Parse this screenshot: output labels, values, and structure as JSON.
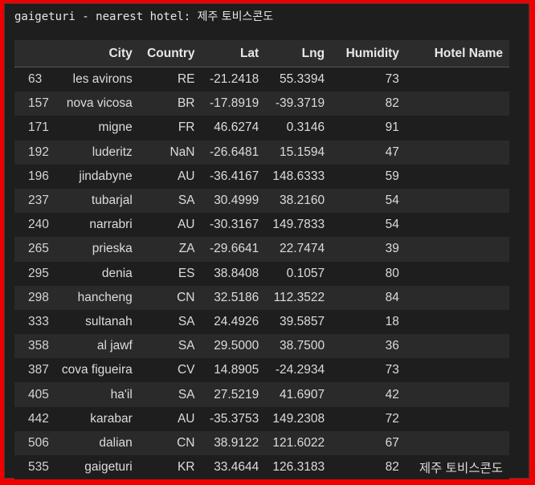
{
  "output": {
    "text": "gaigeturi - nearest hotel: ",
    "hotel": "제주 토비스콘도"
  },
  "table": {
    "columns": [
      "",
      "City",
      "Country",
      "Lat",
      "Lng",
      "Humidity",
      "Hotel Name"
    ],
    "rows": [
      {
        "index": "63",
        "city": "les avirons",
        "country": "RE",
        "lat": "-21.2418",
        "lng": "55.3394",
        "humidity": "73",
        "hotel": ""
      },
      {
        "index": "157",
        "city": "nova vicosa",
        "country": "BR",
        "lat": "-17.8919",
        "lng": "-39.3719",
        "humidity": "82",
        "hotel": ""
      },
      {
        "index": "171",
        "city": "migne",
        "country": "FR",
        "lat": "46.6274",
        "lng": "0.3146",
        "humidity": "91",
        "hotel": ""
      },
      {
        "index": "192",
        "city": "luderitz",
        "country": "NaN",
        "lat": "-26.6481",
        "lng": "15.1594",
        "humidity": "47",
        "hotel": ""
      },
      {
        "index": "196",
        "city": "jindabyne",
        "country": "AU",
        "lat": "-36.4167",
        "lng": "148.6333",
        "humidity": "59",
        "hotel": ""
      },
      {
        "index": "237",
        "city": "tubarjal",
        "country": "SA",
        "lat": "30.4999",
        "lng": "38.2160",
        "humidity": "54",
        "hotel": ""
      },
      {
        "index": "240",
        "city": "narrabri",
        "country": "AU",
        "lat": "-30.3167",
        "lng": "149.7833",
        "humidity": "54",
        "hotel": ""
      },
      {
        "index": "265",
        "city": "prieska",
        "country": "ZA",
        "lat": "-29.6641",
        "lng": "22.7474",
        "humidity": "39",
        "hotel": ""
      },
      {
        "index": "295",
        "city": "denia",
        "country": "ES",
        "lat": "38.8408",
        "lng": "0.1057",
        "humidity": "80",
        "hotel": ""
      },
      {
        "index": "298",
        "city": "hancheng",
        "country": "CN",
        "lat": "32.5186",
        "lng": "112.3522",
        "humidity": "84",
        "hotel": ""
      },
      {
        "index": "333",
        "city": "sultanah",
        "country": "SA",
        "lat": "24.4926",
        "lng": "39.5857",
        "humidity": "18",
        "hotel": ""
      },
      {
        "index": "358",
        "city": "al jawf",
        "country": "SA",
        "lat": "29.5000",
        "lng": "38.7500",
        "humidity": "36",
        "hotel": ""
      },
      {
        "index": "387",
        "city": "cova figueira",
        "country": "CV",
        "lat": "14.8905",
        "lng": "-24.2934",
        "humidity": "73",
        "hotel": ""
      },
      {
        "index": "405",
        "city": "ha'il",
        "country": "SA",
        "lat": "27.5219",
        "lng": "41.6907",
        "humidity": "42",
        "hotel": ""
      },
      {
        "index": "442",
        "city": "karabar",
        "country": "AU",
        "lat": "-35.3753",
        "lng": "149.2308",
        "humidity": "72",
        "hotel": ""
      },
      {
        "index": "506",
        "city": "dalian",
        "country": "CN",
        "lat": "38.9122",
        "lng": "121.6022",
        "humidity": "67",
        "hotel": ""
      },
      {
        "index": "535",
        "city": "gaigeturi",
        "country": "KR",
        "lat": "33.4644",
        "lng": "126.3183",
        "humidity": "82",
        "hotel": "제주 토비스콘도"
      }
    ]
  }
}
